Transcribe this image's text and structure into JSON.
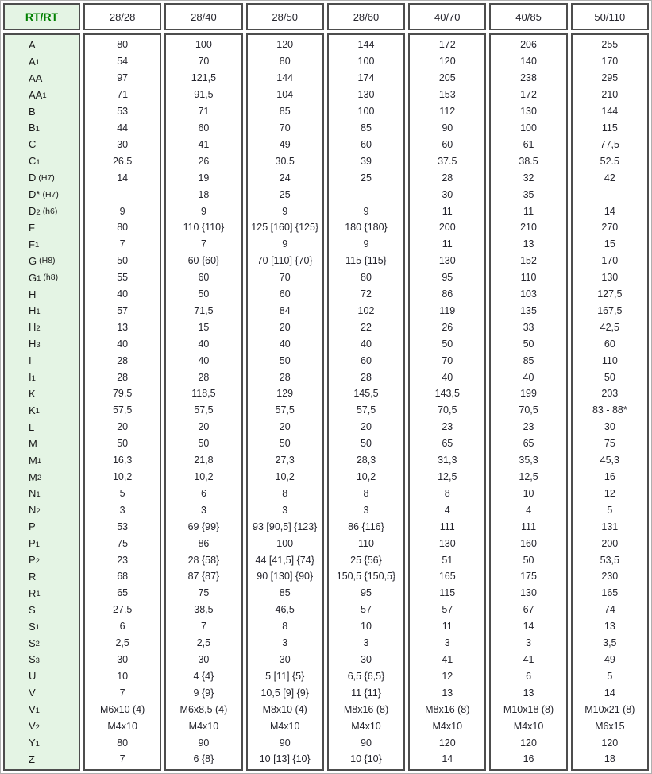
{
  "colors": {
    "header_text_green": "#008000",
    "label_background": "#e4f4e4",
    "border": "#4d4d4d",
    "value_text": "#26262e"
  },
  "table": {
    "corner_label": "RT/RT",
    "columns": [
      "28/28",
      "28/40",
      "28/50",
      "28/60",
      "40/70",
      "40/85",
      "50/110"
    ],
    "rows": [
      {
        "base": "A",
        "sub": "",
        "note": "",
        "values": [
          "80",
          "100",
          "120",
          "144",
          "172",
          "206",
          "255"
        ]
      },
      {
        "base": "A",
        "sub": "1",
        "note": "",
        "values": [
          "54",
          "70",
          "80",
          "100",
          "120",
          "140",
          "170"
        ]
      },
      {
        "base": "AA",
        "sub": "",
        "note": "",
        "values": [
          "97",
          "121,5",
          "144",
          "174",
          "205",
          "238",
          "295"
        ]
      },
      {
        "base": "AA",
        "sub": "1",
        "note": "",
        "values": [
          "71",
          "91,5",
          "104",
          "130",
          "153",
          "172",
          "210"
        ]
      },
      {
        "base": "B",
        "sub": "",
        "note": "",
        "values": [
          "53",
          "71",
          "85",
          "100",
          "112",
          "130",
          "144"
        ]
      },
      {
        "base": "B",
        "sub": "1",
        "note": "",
        "values": [
          "44",
          "60",
          "70",
          "85",
          "90",
          "100",
          "115"
        ]
      },
      {
        "base": "C",
        "sub": "",
        "note": "",
        "values": [
          "30",
          "41",
          "49",
          "60",
          "60",
          "61",
          "77,5"
        ]
      },
      {
        "base": "C",
        "sub": "1",
        "note": "",
        "values": [
          "26.5",
          "26",
          "30.5",
          "39",
          "37.5",
          "38.5",
          "52.5"
        ]
      },
      {
        "base": "D",
        "sub": "",
        "note": "(H7)",
        "values": [
          "14",
          "19",
          "24",
          "25",
          "28",
          "32",
          "42"
        ]
      },
      {
        "base": "D*",
        "sub": "",
        "note": "(H7)",
        "values": [
          "- - -",
          "18",
          "25",
          "- - -",
          "30",
          "35",
          "- - -"
        ]
      },
      {
        "base": "D",
        "sub": "2",
        "note": "(h6)",
        "values": [
          "9",
          "9",
          "9",
          "9",
          "11",
          "11",
          "14"
        ]
      },
      {
        "base": "F",
        "sub": "",
        "note": "",
        "values": [
          "80",
          "110 {110}",
          "125 [160] {125}",
          "180 {180}",
          "200",
          "210",
          "270"
        ]
      },
      {
        "base": "F",
        "sub": "1",
        "note": "",
        "values": [
          "7",
          "7",
          "9",
          "9",
          "11",
          "13",
          "15"
        ]
      },
      {
        "base": "G",
        "sub": "",
        "note": "(H8)",
        "values": [
          "50",
          "60 {60}",
          "70 [110] {70}",
          "115 {115}",
          "130",
          "152",
          "170"
        ]
      },
      {
        "base": "G",
        "sub": "1",
        "note": "(h8)",
        "values": [
          "55",
          "60",
          "70",
          "80",
          "95",
          "110",
          "130"
        ]
      },
      {
        "base": "H",
        "sub": "",
        "note": "",
        "values": [
          "40",
          "50",
          "60",
          "72",
          "86",
          "103",
          "127,5"
        ]
      },
      {
        "base": "H",
        "sub": "1",
        "note": "",
        "values": [
          "57",
          "71,5",
          "84",
          "102",
          "119",
          "135",
          "167,5"
        ]
      },
      {
        "base": "H",
        "sub": "2",
        "note": "",
        "values": [
          "13",
          "15",
          "20",
          "22",
          "26",
          "33",
          "42,5"
        ]
      },
      {
        "base": "H",
        "sub": "3",
        "note": "",
        "values": [
          "40",
          "40",
          "40",
          "40",
          "50",
          "50",
          "60"
        ]
      },
      {
        "base": "I",
        "sub": "",
        "note": "",
        "values": [
          "28",
          "40",
          "50",
          "60",
          "70",
          "85",
          "110"
        ]
      },
      {
        "base": "I",
        "sub": "1",
        "note": "",
        "values": [
          "28",
          "28",
          "28",
          "28",
          "40",
          "40",
          "50"
        ]
      },
      {
        "base": "K",
        "sub": "",
        "note": "",
        "values": [
          "79,5",
          "118,5",
          "129",
          "145,5",
          "143,5",
          "199",
          "203"
        ]
      },
      {
        "base": "K",
        "sub": "1",
        "note": "",
        "values": [
          "57,5",
          "57,5",
          "57,5",
          "57,5",
          "70,5",
          "70,5",
          "83 - 88*"
        ]
      },
      {
        "base": "L",
        "sub": "",
        "note": "",
        "values": [
          "20",
          "20",
          "20",
          "20",
          "23",
          "23",
          "30"
        ]
      },
      {
        "base": "M",
        "sub": "",
        "note": "",
        "values": [
          "50",
          "50",
          "50",
          "50",
          "65",
          "65",
          "75"
        ]
      },
      {
        "base": "M",
        "sub": "1",
        "note": "",
        "values": [
          "16,3",
          "21,8",
          "27,3",
          "28,3",
          "31,3",
          "35,3",
          "45,3"
        ]
      },
      {
        "base": "M",
        "sub": "2",
        "note": "",
        "values": [
          "10,2",
          "10,2",
          "10,2",
          "10,2",
          "12,5",
          "12,5",
          "16"
        ]
      },
      {
        "base": "N",
        "sub": "1",
        "note": "",
        "values": [
          "5",
          "6",
          "8",
          "8",
          "8",
          "10",
          "12"
        ]
      },
      {
        "base": "N",
        "sub": "2",
        "note": "",
        "values": [
          "3",
          "3",
          "3",
          "3",
          "4",
          "4",
          "5"
        ]
      },
      {
        "base": "P",
        "sub": "",
        "note": "",
        "values": [
          "53",
          "69 {99}",
          "93 [90,5] {123}",
          "86 {116}",
          "111",
          "111",
          "131"
        ]
      },
      {
        "base": "P",
        "sub": "1",
        "note": "",
        "values": [
          "75",
          "86",
          "100",
          "110",
          "130",
          "160",
          "200"
        ]
      },
      {
        "base": "P",
        "sub": "2",
        "note": "",
        "values": [
          "23",
          "28 {58}",
          "44 [41,5] {74}",
          "25 {56}",
          "51",
          "50",
          "53,5"
        ]
      },
      {
        "base": "R",
        "sub": "",
        "note": "",
        "values": [
          "68",
          "87 {87}",
          "90 [130] {90}",
          "150,5 {150,5}",
          "165",
          "175",
          "230"
        ]
      },
      {
        "base": "R",
        "sub": "1",
        "note": "",
        "values": [
          "65",
          "75",
          "85",
          "95",
          "115",
          "130",
          "165"
        ]
      },
      {
        "base": "S",
        "sub": "",
        "note": "",
        "values": [
          "27,5",
          "38,5",
          "46,5",
          "57",
          "57",
          "67",
          "74"
        ]
      },
      {
        "base": "S",
        "sub": "1",
        "note": "",
        "values": [
          "6",
          "7",
          "8",
          "10",
          "11",
          "14",
          "13"
        ]
      },
      {
        "base": "S",
        "sub": "2",
        "note": "",
        "values": [
          "2,5",
          "2,5",
          "3",
          "3",
          "3",
          "3",
          "3,5"
        ]
      },
      {
        "base": "S",
        "sub": "3",
        "note": "",
        "values": [
          "30",
          "30",
          "30",
          "30",
          "41",
          "41",
          "49"
        ]
      },
      {
        "base": "U",
        "sub": "",
        "note": "",
        "values": [
          "10",
          "4 {4}",
          "5 [11] {5}",
          "6,5 {6,5}",
          "12",
          "6",
          "5"
        ]
      },
      {
        "base": "V",
        "sub": "",
        "note": "",
        "values": [
          "7",
          "9 {9}",
          "10,5 [9] {9}",
          "11 {11}",
          "13",
          "13",
          "14"
        ]
      },
      {
        "base": "V",
        "sub": "1",
        "note": "",
        "values": [
          "M6x10 (4)",
          "M6x8,5 (4)",
          "M8x10 (4)",
          "M8x16 (8)",
          "M8x16 (8)",
          "M10x18 (8)",
          "M10x21 (8)"
        ]
      },
      {
        "base": "V",
        "sub": "2",
        "note": "",
        "values": [
          "M4x10",
          "M4x10",
          "M4x10",
          "M4x10",
          "M4x10",
          "M4x10",
          "M6x15"
        ]
      },
      {
        "base": "Y",
        "sub": "1",
        "note": "",
        "values": [
          "80",
          "90",
          "90",
          "90",
          "120",
          "120",
          "120"
        ]
      },
      {
        "base": "Z",
        "sub": "",
        "note": "",
        "values": [
          "7",
          "6 {8}",
          "10 [13] {10}",
          "10 {10}",
          "14",
          "16",
          "18"
        ]
      }
    ]
  }
}
